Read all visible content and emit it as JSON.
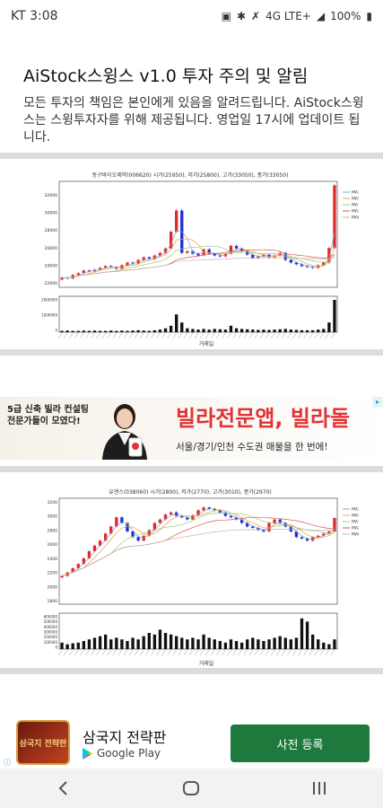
{
  "status_bar": {
    "carrier_time": "KT 3:08",
    "icons": [
      "lock-icon",
      "bluetooth-icon",
      "mute-icon",
      "lte-icon",
      "signal-icon"
    ],
    "network": "4G LTE+",
    "battery": "100%"
  },
  "dialog": {
    "title": "AiStock스윙스 v1.0 투자 주의 및 알림",
    "body": "모든 투자의 책임은 본인에게 있음을 알려드립니다. AiStock스윙스는 스윙투자자를 위해 제공됩니다. 영업일 17시에 업데이트 됩니다."
  },
  "charts": [
    {
      "title": "동구바이오제약(006620) 시가(25950), 저가(25800), 고가(33050), 종가(33050)",
      "xlabel": "거래일",
      "legend": [
        "MA3",
        "MA5",
        "MA10",
        "MA20",
        "MA60"
      ],
      "yticks": [
        "32000",
        "30000",
        "28000",
        "26000",
        "24000",
        "22000"
      ],
      "vol_ticks": [
        "2000000",
        "1000000",
        "0"
      ]
    },
    {
      "title": "유엔스(038060) 시가(2800), 저가(2770), 고가(3010), 종가(2970)",
      "xlabel": "거래일",
      "legend": [
        "MA3",
        "MA5",
        "MA10",
        "MA20",
        "MA60"
      ],
      "yticks": [
        "3200",
        "3000",
        "2800",
        "2600",
        "2400",
        "2200",
        "2000",
        "1800"
      ],
      "vol_ticks": [
        "600000",
        "500000",
        "400000",
        "300000",
        "200000",
        "100000",
        "0"
      ]
    }
  ],
  "chart_data": [
    {
      "type": "candlestick",
      "title": "동구바이오제약(006620) 시가(25950), 저가(25800), 고가(33050), 종가(33050)",
      "xlabel": "거래일",
      "ylim": [
        21500,
        33500
      ],
      "close": [
        22600,
        22500,
        22900,
        23100,
        23400,
        23300,
        23500,
        23700,
        23900,
        23800,
        23600,
        24000,
        24300,
        24200,
        24600,
        24900,
        24700,
        25100,
        25400,
        25900,
        27800,
        30200,
        25400,
        25600,
        25300,
        25100,
        25800,
        25300,
        25100,
        25000,
        25300,
        26200,
        25900,
        25600,
        25200,
        24800,
        25000,
        25200,
        24900,
        25100,
        25400,
        24600,
        24300,
        24100,
        23900,
        23800,
        23700,
        24000,
        24300,
        25950,
        33050
      ],
      "volume": [
        0.04,
        0.05,
        0.04,
        0.04,
        0.05,
        0.04,
        0.05,
        0.04,
        0.04,
        0.05,
        0.04,
        0.05,
        0.04,
        0.05,
        0.06,
        0.05,
        0.04,
        0.06,
        0.08,
        0.12,
        0.2,
        0.55,
        0.3,
        0.12,
        0.1,
        0.08,
        0.1,
        0.08,
        0.1,
        0.09,
        0.08,
        0.2,
        0.12,
        0.1,
        0.09,
        0.08,
        0.07,
        0.08,
        0.07,
        0.08,
        0.09,
        0.1,
        0.08,
        0.07,
        0.06,
        0.06,
        0.06,
        0.08,
        0.1,
        0.3,
        1.0
      ]
    },
    {
      "type": "candlestick",
      "title": "유엔스(038060) 시가(2800), 저가(2770), 고가(3010), 종가(2970)",
      "xlabel": "거래일",
      "ylim": [
        1750,
        3250
      ],
      "close": [
        2150,
        2200,
        2260,
        2320,
        2400,
        2500,
        2580,
        2650,
        2750,
        2850,
        2980,
        2900,
        2780,
        2700,
        2650,
        2720,
        2800,
        2900,
        2950,
        3020,
        3050,
        3000,
        2980,
        2950,
        3010,
        3080,
        3120,
        3100,
        3080,
        3050,
        3000,
        2980,
        2950,
        2900,
        2850,
        2830,
        2800,
        2780,
        2900,
        2950,
        2900,
        2850,
        2780,
        2700,
        2680,
        2650,
        2700,
        2720,
        2750,
        2780,
        2970
      ],
      "volume": [
        0.2,
        0.15,
        0.18,
        0.2,
        0.25,
        0.3,
        0.35,
        0.4,
        0.45,
        0.3,
        0.35,
        0.3,
        0.25,
        0.35,
        0.3,
        0.4,
        0.5,
        0.45,
        0.6,
        0.5,
        0.45,
        0.4,
        0.35,
        0.3,
        0.35,
        0.3,
        0.45,
        0.35,
        0.3,
        0.25,
        0.2,
        0.3,
        0.25,
        0.2,
        0.3,
        0.35,
        0.3,
        0.25,
        0.3,
        0.35,
        0.4,
        0.35,
        0.3,
        0.35,
        0.95,
        0.85,
        0.45,
        0.3,
        0.2,
        0.15,
        0.3
      ]
    }
  ],
  "ad1": {
    "left_text": "5급 신축 빌라 컨설팅 전문가들이 모였다!",
    "headline": "빌라전문앱, 빌라돌",
    "sub": "서울/경기/인천 수도권 매물을 한 번에!"
  },
  "ad2": {
    "icon_text": "삼국지 전략판",
    "title": "삼국지 전략판",
    "store": "Google Play",
    "button": "사전 등록"
  },
  "colors": {
    "up": "#e0292b",
    "down": "#1f2fd6",
    "divider": "#dcdcdc",
    "cta": "#1e7a3c"
  }
}
